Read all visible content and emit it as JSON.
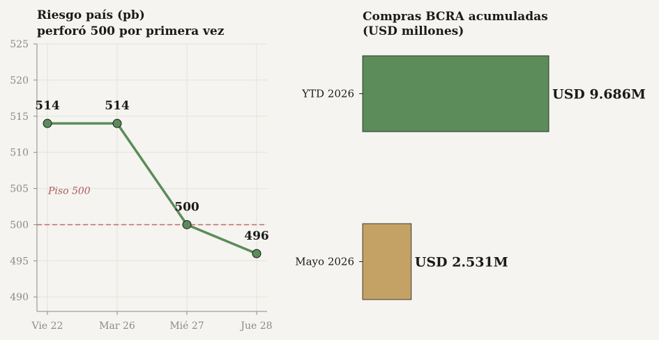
{
  "chart_data": [
    {
      "type": "line",
      "title_line1": "Riesgo país (pb)",
      "title_line2": "perforó 500 por primera vez",
      "categories": [
        "Vie 22",
        "Mar 26",
        "Mié 27",
        "Jue 28"
      ],
      "values": [
        514,
        514,
        500,
        496
      ],
      "data_labels": [
        "514",
        "514",
        "500",
        "496"
      ],
      "ylim": [
        488,
        525
      ],
      "yticks": [
        490,
        495,
        500,
        505,
        510,
        515,
        520,
        525
      ],
      "grid": true,
      "reference_line": {
        "value": 500,
        "label": "Piso 500",
        "color": "#c0686b"
      },
      "line_color": "#5b8c5a"
    },
    {
      "type": "bar",
      "orientation": "horizontal",
      "title_line1": "Compras BCRA acumuladas",
      "title_line2": "(USD millones)",
      "categories": [
        "YTD 2026",
        "Mayo 2026"
      ],
      "values": [
        9686,
        2531
      ],
      "data_labels": [
        "USD 9.686M",
        "USD 2.531M"
      ],
      "colors": [
        "#5b8c5a",
        "#c4a265"
      ]
    }
  ]
}
